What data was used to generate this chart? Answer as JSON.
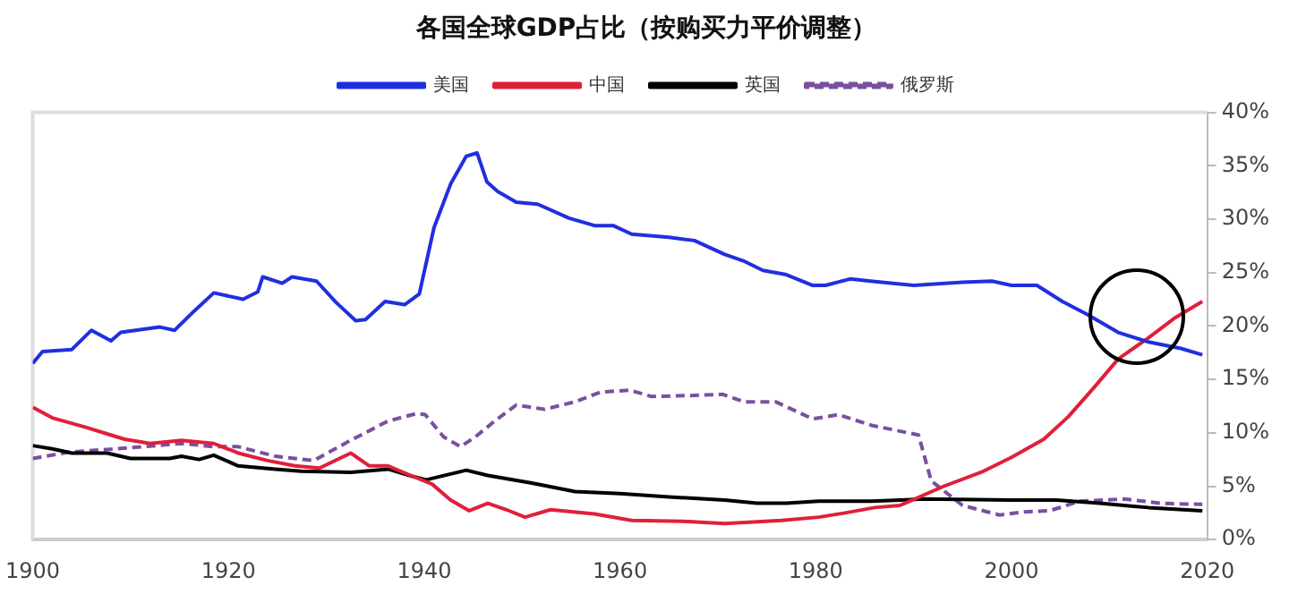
{
  "chart_data": {
    "type": "line",
    "title": "各国全球GDP占比（按购买力平价调整）",
    "legend": "top",
    "grid": false,
    "xlim": [
      1900,
      2020
    ],
    "xticks": [
      1900,
      1920,
      1940,
      1960,
      1980,
      2000,
      2020
    ],
    "ylim": [
      0,
      40
    ],
    "yticks": [
      {
        "value": 0,
        "label": "0%"
      },
      {
        "value": 5,
        "label": "5%"
      },
      {
        "value": 10,
        "label": "10%"
      },
      {
        "value": 15,
        "label": "15%"
      },
      {
        "value": 20,
        "label": "20%"
      },
      {
        "value": 25,
        "label": "25%"
      },
      {
        "value": 30,
        "label": "30%"
      },
      {
        "value": 35,
        "label": "35%"
      },
      {
        "value": 40,
        "label": "40%"
      }
    ],
    "marker": "none",
    "series": [
      {
        "name": "美国",
        "color": "#1f2fe0",
        "line_style": "solid",
        "x": [
          1900,
          1901,
          1904,
          1906,
          1908,
          1909,
          1913,
          1914.5,
          1916.5,
          1918.5,
          1921.5,
          1923,
          1923.5,
          1925.5,
          1926.5,
          1929,
          1931,
          1933,
          1934,
          1936,
          1938,
          1939.5,
          1941,
          1942.7,
          1944.3,
          1945.4,
          1946.4,
          1947.5,
          1949.4,
          1951.6,
          1954.8,
          1957.4,
          1959.3,
          1961.2,
          1965,
          1967.6,
          1970.7,
          1972.6,
          1974.6,
          1977,
          1979.7,
          1981,
          1983.5,
          1985.6,
          1990,
          1995,
          1998,
          2000,
          2002.6,
          2005.2,
          2007.7,
          2010.9,
          2014,
          2017.3,
          2019.5
        ],
        "values": [
          16.5,
          17.6,
          17.8,
          19.6,
          18.6,
          19.4,
          19.9,
          19.6,
          21.4,
          23.1,
          22.5,
          23.2,
          24.6,
          24.0,
          24.6,
          24.2,
          22.2,
          20.5,
          20.6,
          22.3,
          22.0,
          23.0,
          29.2,
          33.3,
          35.9,
          36.2,
          33.5,
          32.6,
          31.6,
          31.4,
          30.1,
          29.4,
          29.4,
          28.6,
          28.3,
          28.0,
          26.7,
          26.1,
          25.2,
          24.8,
          23.8,
          23.8,
          24.4,
          24.2,
          23.8,
          24.1,
          24.2,
          23.8,
          23.8,
          22.3,
          21.1,
          19.4,
          18.5,
          17.9,
          17.3
        ]
      },
      {
        "name": "中国",
        "color": "#e0203a",
        "line_style": "solid",
        "x": [
          1900,
          1902,
          1905.5,
          1907.6,
          1909.4,
          1912,
          1915.2,
          1918.5,
          1921,
          1924,
          1926.8,
          1929.3,
          1932.5,
          1934.4,
          1936.3,
          1938.9,
          1940.8,
          1942.7,
          1944.6,
          1946.5,
          1948.4,
          1950.3,
          1952.9,
          1957.4,
          1961.2,
          1967,
          1970.7,
          1976.5,
          1980.3,
          1983,
          1986,
          1988.6,
          1993.1,
          1996.9,
          2000,
          2003.3,
          2005.8,
          2008.4,
          2010.9,
          2014,
          2016.6,
          2019.5
        ],
        "values": [
          12.4,
          11.4,
          10.5,
          9.9,
          9.4,
          9.0,
          9.3,
          9.0,
          8.1,
          7.4,
          6.9,
          6.7,
          8.1,
          6.9,
          6.9,
          5.9,
          5.2,
          3.7,
          2.7,
          3.4,
          2.8,
          2.1,
          2.8,
          2.4,
          1.8,
          1.7,
          1.5,
          1.8,
          2.1,
          2.5,
          3.0,
          3.2,
          5.0,
          6.3,
          7.7,
          9.4,
          11.5,
          14.2,
          16.9,
          18.9,
          20.7,
          22.3
        ]
      },
      {
        "name": "英国",
        "color": "#000000",
        "line_style": "solid",
        "x": [
          1900,
          1902,
          1904,
          1907.6,
          1910,
          1914,
          1915.2,
          1917,
          1918.5,
          1921,
          1924.8,
          1927.4,
          1932.5,
          1936.3,
          1938.9,
          1940.2,
          1944.3,
          1946.5,
          1951,
          1955.4,
          1960,
          1965,
          1970.7,
          1974,
          1977,
          1980.3,
          1985.7,
          1991,
          2000,
          2004.6,
          2009,
          2014,
          2019.5
        ],
        "values": [
          8.8,
          8.5,
          8.1,
          8.1,
          7.6,
          7.6,
          7.8,
          7.5,
          7.9,
          6.9,
          6.6,
          6.4,
          6.3,
          6.6,
          5.9,
          5.6,
          6.5,
          6.0,
          5.3,
          4.5,
          4.3,
          4.0,
          3.7,
          3.4,
          3.4,
          3.6,
          3.6,
          3.8,
          3.7,
          3.7,
          3.4,
          3.0,
          2.7
        ]
      },
      {
        "name": "俄罗斯",
        "color": "#7a4fa0",
        "line_style": "dashed",
        "x": [
          1900,
          1903.8,
          1910,
          1915.2,
          1918.5,
          1921,
          1924.8,
          1928.7,
          1932.5,
          1936.3,
          1939.2,
          1940.1,
          1942,
          1943.7,
          1945.2,
          1947.2,
          1949.4,
          1952.3,
          1955.4,
          1958,
          1961,
          1963.2,
          1967.6,
          1970.5,
          1972.7,
          1975.9,
          1979.7,
          1982.3,
          1985.7,
          1990.5,
          1991.8,
          1995,
          1998.8,
          2001.3,
          2003.9,
          2007,
          2011.5,
          2015.3,
          2019.5
        ],
        "values": [
          7.6,
          8.2,
          8.6,
          9.0,
          8.7,
          8.7,
          7.8,
          7.4,
          9.3,
          11.1,
          11.8,
          11.7,
          9.6,
          8.7,
          9.6,
          11.1,
          12.6,
          12.2,
          12.9,
          13.8,
          14.0,
          13.4,
          13.5,
          13.6,
          12.9,
          12.9,
          11.3,
          11.7,
          10.7,
          9.8,
          5.5,
          3.2,
          2.3,
          2.6,
          2.7,
          3.6,
          3.8,
          3.4,
          3.3
        ]
      }
    ]
  }
}
